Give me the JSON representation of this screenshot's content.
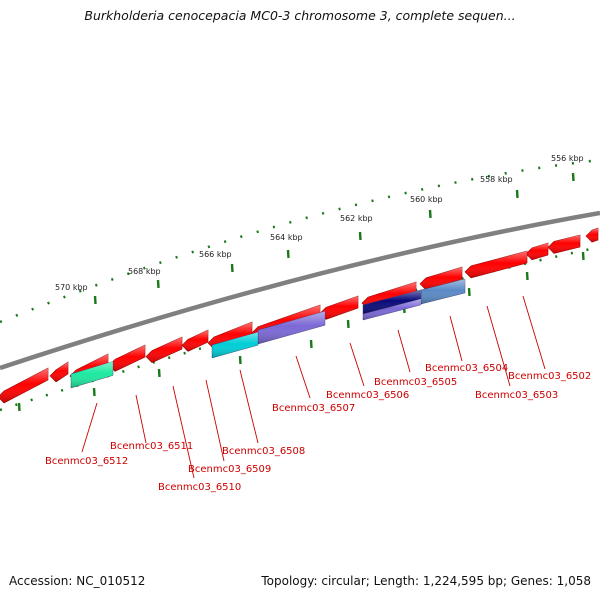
{
  "title": "Burkholderia cenocepacia MC0-3 chromosome 3, complete sequen...",
  "footer": {
    "accession": "Accession: NC_010512",
    "summary": "Topology: circular; Length: 1,224,595 bp; Genes: 1,058"
  },
  "scale": {
    "ticks": [
      {
        "kbp": 556,
        "label": "556 kbp"
      },
      {
        "kbp": 558,
        "label": "558 kbp"
      },
      {
        "kbp": 560,
        "label": "560 kbp"
      },
      {
        "kbp": 562,
        "label": "562 kbp"
      },
      {
        "kbp": 564,
        "label": "564 kbp"
      },
      {
        "kbp": 566,
        "label": "566 kbp"
      },
      {
        "kbp": 568,
        "label": "568 kbp"
      },
      {
        "kbp": 570,
        "label": "570 kbp"
      }
    ]
  },
  "genes": [
    {
      "id": "Bcenmc03_6502",
      "color": "#6a6aca"
    },
    {
      "id": "Bcenmc03_6503",
      "color": "#5a8ac6"
    },
    {
      "id": "Bcenmc03_6504",
      "color": "#5a8ac6"
    },
    {
      "id": "Bcenmc03_6505",
      "color": "#0a0a7a"
    },
    {
      "id": "Bcenmc03_6506",
      "color": "#7b68d6"
    },
    {
      "id": "Bcenmc03_6507",
      "color": "#7b68d6"
    },
    {
      "id": "Bcenmc03_6508",
      "color": "#00ced8"
    },
    {
      "id": "Bcenmc03_6509",
      "color": "#ff0000"
    },
    {
      "id": "Bcenmc03_6510",
      "color": "#ff0000"
    },
    {
      "id": "Bcenmc03_6511",
      "color": "#ff0000"
    },
    {
      "id": "Bcenmc03_6512",
      "color": "#1de9a0"
    }
  ],
  "colors": {
    "backbone": "#808080",
    "forward_gene": "#ff0000",
    "label_line": "#cc0000",
    "scale_dot": "#1a7a1a"
  }
}
